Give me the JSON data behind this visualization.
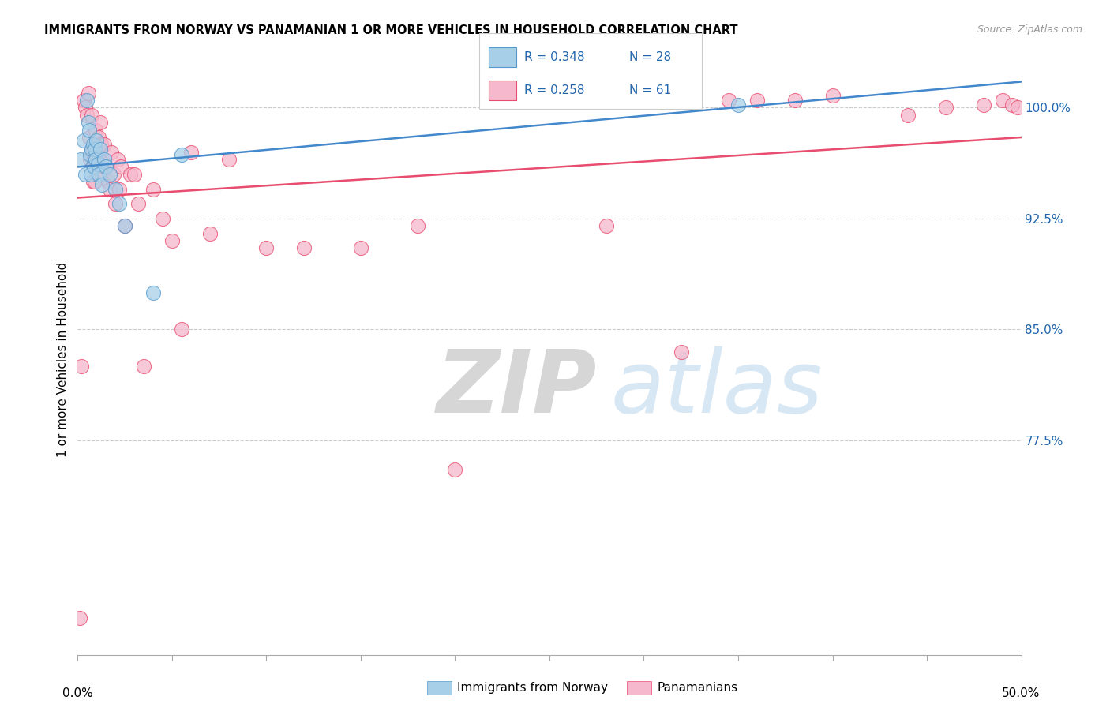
{
  "title": "IMMIGRANTS FROM NORWAY VS PANAMANIAN 1 OR MORE VEHICLES IN HOUSEHOLD CORRELATION CHART",
  "source": "Source: ZipAtlas.com",
  "ylabel": "1 or more Vehicles in Household",
  "xmin": 0.0,
  "xmax": 50.0,
  "ymin": 63.0,
  "ymax": 103.0,
  "legend_norway_r": "R = 0.348",
  "legend_norway_n": "N = 28",
  "legend_panama_r": "R = 0.258",
  "legend_panama_n": "N = 61",
  "legend_norway_label": "Immigrants from Norway",
  "legend_panama_label": "Panamanians",
  "norway_color": "#a8cfe8",
  "panama_color": "#f5b8cc",
  "norway_edge_color": "#5599cc",
  "panama_edge_color": "#e84c6e",
  "norway_line_color": "#4488cc",
  "panama_line_color": "#e84c6e",
  "legend_text_color": "#2166ac",
  "right_axis_color": "#2166ac",
  "grid_yticks": [
    77.5,
    85.0,
    92.5,
    100.0
  ],
  "right_ytick_labels": [
    "77.5%",
    "85.0%",
    "92.5%",
    "100.0%"
  ],
  "background_color": "#ffffff",
  "norway_x": [
    0.15,
    0.3,
    0.4,
    0.5,
    0.55,
    0.6,
    0.65,
    0.7,
    0.75,
    0.8,
    0.85,
    0.9,
    0.95,
    1.0,
    1.05,
    1.1,
    1.2,
    1.3,
    1.4,
    1.5,
    1.7,
    2.0,
    2.2,
    2.5,
    4.0,
    5.5,
    30.0,
    35.0
  ],
  "norway_y": [
    96.5,
    97.8,
    95.5,
    100.5,
    99.0,
    98.5,
    96.8,
    95.5,
    97.2,
    97.5,
    96.0,
    97.2,
    96.5,
    97.8,
    96.2,
    95.5,
    97.2,
    94.8,
    96.5,
    96.0,
    95.5,
    94.5,
    93.5,
    92.0,
    87.5,
    96.8,
    100.8,
    100.2
  ],
  "panama_x": [
    0.1,
    0.2,
    0.3,
    0.4,
    0.5,
    0.55,
    0.6,
    0.65,
    0.7,
    0.75,
    0.8,
    0.85,
    0.9,
    0.95,
    1.0,
    1.05,
    1.1,
    1.15,
    1.2,
    1.25,
    1.3,
    1.35,
    1.4,
    1.5,
    1.6,
    1.7,
    1.8,
    1.9,
    2.0,
    2.1,
    2.2,
    2.3,
    2.5,
    2.8,
    3.0,
    3.2,
    3.5,
    4.0,
    4.5,
    5.0,
    5.5,
    6.0,
    7.0,
    8.0,
    10.0,
    12.0,
    15.0,
    18.0,
    20.0,
    28.0,
    32.0,
    34.5,
    36.0,
    38.0,
    40.0,
    44.0,
    46.0,
    48.0,
    49.0,
    49.5,
    49.8
  ],
  "panama_y": [
    65.5,
    82.5,
    100.5,
    100.0,
    99.5,
    101.0,
    98.0,
    96.5,
    97.0,
    99.5,
    95.0,
    96.5,
    95.0,
    98.5,
    97.0,
    97.5,
    98.0,
    97.0,
    99.0,
    97.5,
    95.5,
    96.0,
    97.5,
    96.0,
    95.0,
    94.5,
    97.0,
    95.5,
    93.5,
    96.5,
    94.5,
    96.0,
    92.0,
    95.5,
    95.5,
    93.5,
    82.5,
    94.5,
    92.5,
    91.0,
    85.0,
    97.0,
    91.5,
    96.5,
    90.5,
    90.5,
    90.5,
    92.0,
    75.5,
    92.0,
    83.5,
    100.5,
    100.5,
    100.5,
    100.8,
    99.5,
    100.0,
    100.2,
    100.5,
    100.2,
    100.0
  ]
}
